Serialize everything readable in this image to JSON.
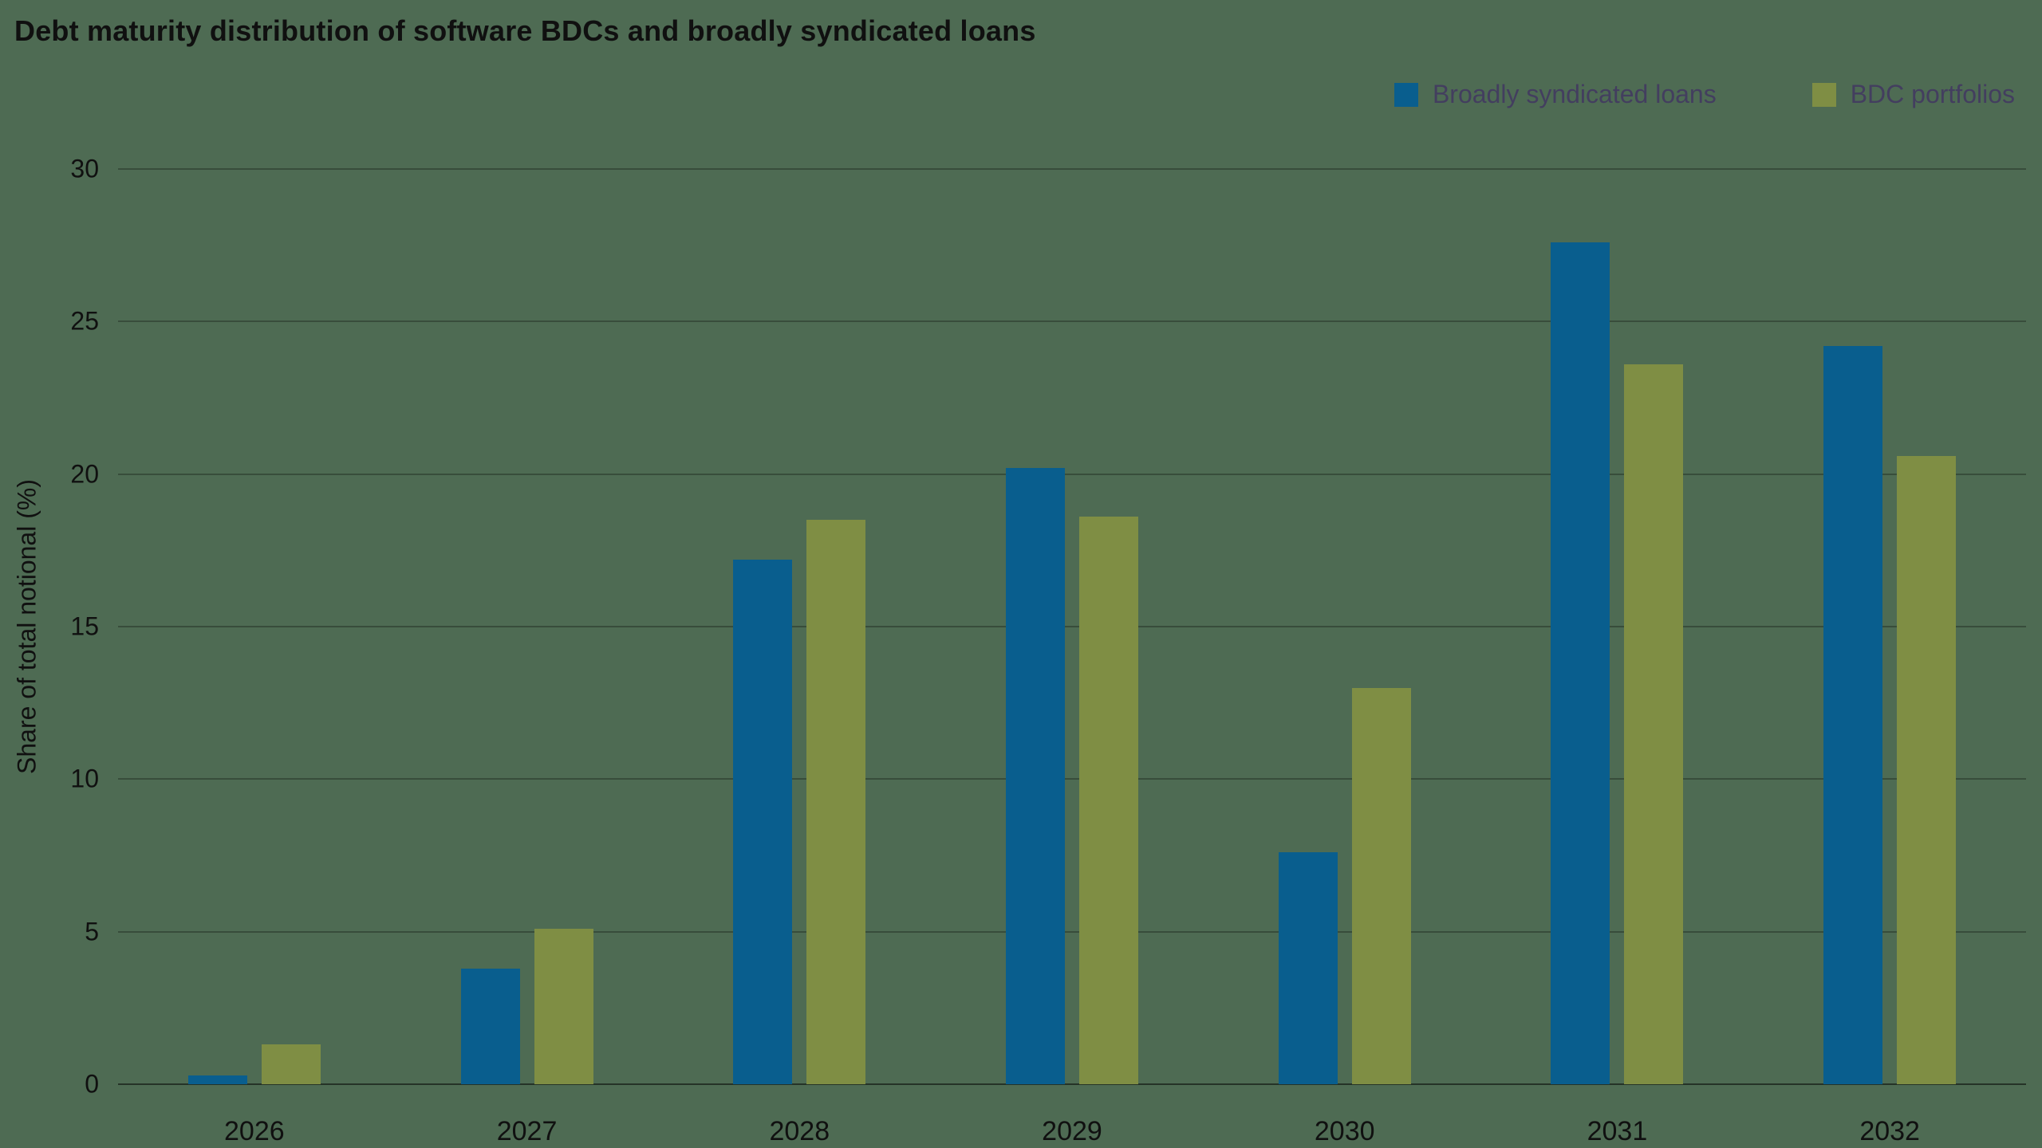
{
  "title": "Debt maturity distribution of software BDCs and broadly syndicated loans",
  "legend": [
    {
      "label": "Broadly syndicated loans",
      "color": "#095e8e"
    },
    {
      "label": "BDC portfolios",
      "color": "#7f8e44"
    }
  ],
  "chart_data": {
    "type": "bar",
    "title": "Debt maturity distribution of software BDCs and broadly syndicated loans",
    "categories": [
      "2026",
      "2027",
      "2028",
      "2029",
      "2030",
      "2031",
      "2032"
    ],
    "series": [
      {
        "name": "Broadly syndicated loans",
        "color": "#095e8e",
        "values": [
          0.3,
          3.8,
          17.2,
          20.2,
          7.6,
          27.6,
          24.2
        ]
      },
      {
        "name": "BDC portfolios",
        "color": "#7f8e44",
        "values": [
          1.3,
          5.1,
          18.5,
          18.6,
          13.0,
          23.6,
          20.6
        ]
      }
    ],
    "xlabel": "",
    "ylabel": "Share of total notional (%)",
    "ylim": [
      0,
      30
    ],
    "yticks": [
      0,
      5,
      10,
      15,
      20,
      25,
      30
    ],
    "grid": true,
    "legend_position": "top-right"
  },
  "colors": {
    "background": "#4e6b53",
    "gridline": "rgba(0,0,0,0.28)",
    "baseline": "rgba(0,0,0,0.52)",
    "axis_text": "#101010",
    "legend_text": "#433e5f",
    "series_blue": "#095e8e",
    "series_olive": "#7f8e44"
  }
}
